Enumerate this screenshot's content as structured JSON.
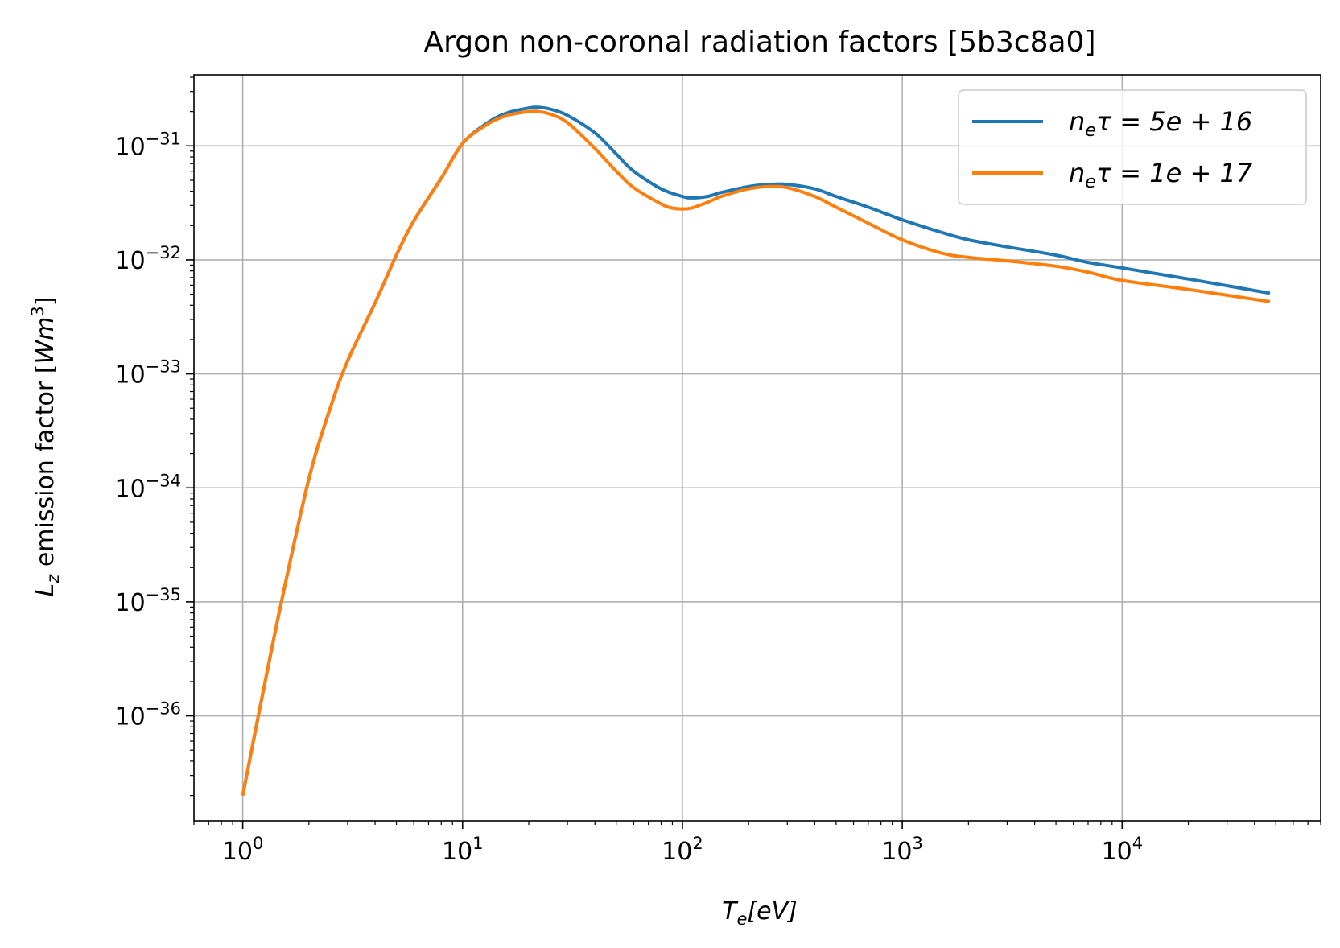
{
  "chart_data": {
    "type": "line",
    "title": "Argon non-coronal radiation factors [5b3c8a0]",
    "xlabel": {
      "main": "T",
      "sub": "e",
      "rest": "[eV]"
    },
    "ylabel": {
      "main": "L",
      "sub": "z",
      "mid": " emission factor [",
      "unit": "Wm",
      "sup": "3",
      "close": "]"
    },
    "xscale": "log",
    "yscale": "log",
    "xlim": [
      0.6,
      80000
    ],
    "ylim": [
      1.2e-37,
      4.2e-31
    ],
    "grid": true,
    "legend_position": "top-right",
    "x_ticks": [
      {
        "base": "10",
        "exp": "0",
        "value": 1
      },
      {
        "base": "10",
        "exp": "1",
        "value": 10
      },
      {
        "base": "10",
        "exp": "2",
        "value": 100
      },
      {
        "base": "10",
        "exp": "3",
        "value": 1000
      },
      {
        "base": "10",
        "exp": "4",
        "value": 10000
      }
    ],
    "y_ticks": [
      {
        "base": "10",
        "exp": "−31",
        "value": 1e-31
      },
      {
        "base": "10",
        "exp": "−32",
        "value": 1e-32
      },
      {
        "base": "10",
        "exp": "−33",
        "value": 1e-33
      },
      {
        "base": "10",
        "exp": "−34",
        "value": 1e-34
      },
      {
        "base": "10",
        "exp": "−35",
        "value": 1e-35
      },
      {
        "base": "10",
        "exp": "−36",
        "value": 1e-36
      }
    ],
    "series": [
      {
        "name": "n_e τ = 5e+16",
        "legend": {
          "pre": "n",
          "sub": "e",
          "post": "τ = 5e + 16"
        },
        "color": "#1f77b4",
        "x": [
          1,
          1.2,
          1.5,
          2,
          2.5,
          3,
          4,
          5,
          6,
          8,
          10,
          13,
          16,
          20,
          22,
          25,
          30,
          40,
          50,
          60,
          80,
          100,
          110,
          130,
          150,
          200,
          250,
          300,
          400,
          500,
          700,
          1000,
          1500,
          2000,
          3000,
          5000,
          7000,
          10000,
          20000,
          47000
        ],
        "y": [
          2e-37,
          1.2e-36,
          1e-35,
          1.2e-34,
          5e-34,
          1.3e-33,
          4.2e-33,
          1.1e-32,
          2.2e-32,
          5.2e-32,
          1.05e-31,
          1.6e-31,
          1.95e-31,
          2.15e-31,
          2.18e-31,
          2.1e-31,
          1.85e-31,
          1.3e-31,
          8.5e-32,
          6e-32,
          4.2e-32,
          3.6e-32,
          3.5e-32,
          3.6e-32,
          3.9e-32,
          4.4e-32,
          4.6e-32,
          4.6e-32,
          4.2e-32,
          3.6e-32,
          2.9e-32,
          2.25e-32,
          1.75e-32,
          1.5e-32,
          1.3e-32,
          1.1e-32,
          9.5e-33,
          8.5e-33,
          6.8e-33,
          5.1e-33
        ]
      },
      {
        "name": "n_e τ = 1e+17",
        "legend": {
          "pre": "n",
          "sub": "e",
          "post": "τ = 1e + 17"
        },
        "color": "#ff7f0e",
        "x": [
          1,
          1.2,
          1.5,
          2,
          2.5,
          3,
          4,
          5,
          6,
          8,
          10,
          13,
          16,
          20,
          22,
          25,
          30,
          40,
          50,
          60,
          80,
          90,
          100,
          110,
          130,
          150,
          200,
          250,
          300,
          400,
          500,
          700,
          1000,
          1500,
          2000,
          3000,
          5000,
          7000,
          10000,
          20000,
          47000
        ],
        "y": [
          2e-37,
          1.2e-36,
          1e-35,
          1.2e-34,
          5e-34,
          1.3e-33,
          4.2e-33,
          1.1e-32,
          2.2e-32,
          5.2e-32,
          1.05e-31,
          1.55e-31,
          1.85e-31,
          2e-31,
          2e-31,
          1.9e-31,
          1.6e-31,
          9.5e-32,
          6e-32,
          4.3e-32,
          3.1e-32,
          2.85e-32,
          2.8e-32,
          2.85e-32,
          3.2e-32,
          3.6e-32,
          4.2e-32,
          4.4e-32,
          4.3e-32,
          3.6e-32,
          2.9e-32,
          2.1e-32,
          1.5e-32,
          1.15e-32,
          1.05e-32,
          9.8e-33,
          8.8e-33,
          7.8e-33,
          6.6e-33,
          5.5e-33,
          4.3e-33
        ]
      }
    ]
  }
}
